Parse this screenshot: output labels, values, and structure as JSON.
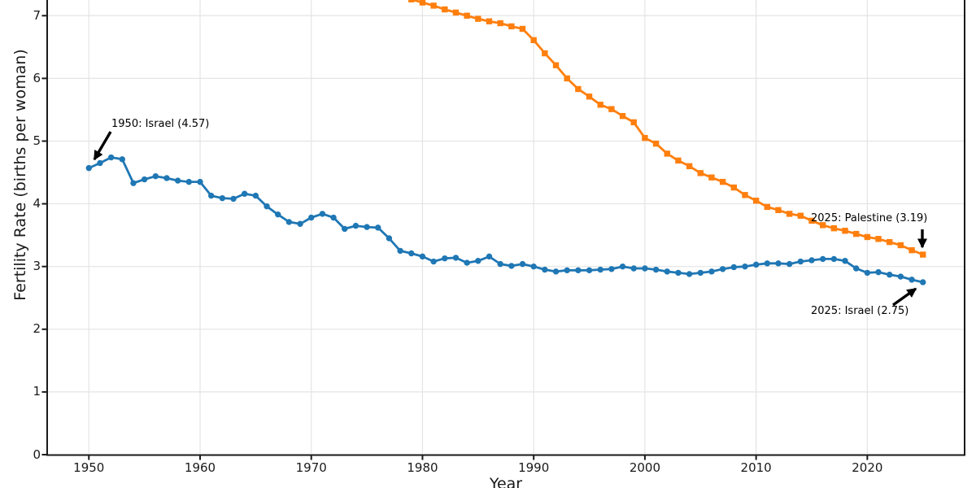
{
  "chart_data": {
    "type": "line",
    "xlabel": "Year",
    "ylabel": "Fertility Rate (births per woman)",
    "xlim": [
      1946.25,
      2028.75
    ],
    "ylim": [
      0,
      7.25
    ],
    "x_ticks": [
      1950,
      1960,
      1970,
      1980,
      1990,
      2000,
      2010,
      2020
    ],
    "y_ticks": [
      0,
      1,
      2,
      3,
      4,
      5,
      6,
      7
    ],
    "grid": true,
    "note": "top of plot (title and Palestine values before 1979) cropped out of view",
    "series": [
      {
        "name": "Israel",
        "color": "#1f77b4",
        "marker": "circle",
        "x_start": 1950,
        "values": [
          4.57,
          4.65,
          4.74,
          4.71,
          4.33,
          4.39,
          4.44,
          4.41,
          4.37,
          4.35,
          4.35,
          4.13,
          4.09,
          4.08,
          4.16,
          4.13,
          3.96,
          3.83,
          3.71,
          3.68,
          3.78,
          3.84,
          3.78,
          3.6,
          3.65,
          3.63,
          3.62,
          3.45,
          3.25,
          3.21,
          3.16,
          3.08,
          3.13,
          3.14,
          3.06,
          3.09,
          3.16,
          3.04,
          3.01,
          3.04,
          3.0,
          2.95,
          2.92,
          2.94,
          2.94,
          2.94,
          2.95,
          2.96,
          3.0,
          2.97,
          2.97,
          2.95,
          2.92,
          2.9,
          2.88,
          2.9,
          2.92,
          2.96,
          2.99,
          3.0,
          3.03,
          3.05,
          3.05,
          3.04,
          3.08,
          3.1,
          3.12,
          3.12,
          3.09,
          2.97,
          2.9,
          2.91,
          2.87,
          2.84,
          2.79,
          2.75
        ]
      },
      {
        "name": "Palestine",
        "color": "#ff7f0e",
        "marker": "square",
        "x_start": 1979,
        "values": [
          7.26,
          7.21,
          7.16,
          7.1,
          7.05,
          7.0,
          6.95,
          6.91,
          6.88,
          6.83,
          6.79,
          6.61,
          6.4,
          6.21,
          6.0,
          5.83,
          5.71,
          5.58,
          5.51,
          5.4,
          5.3,
          5.05,
          4.96,
          4.8,
          4.69,
          4.6,
          4.49,
          4.42,
          4.35,
          4.26,
          4.14,
          4.05,
          3.95,
          3.9,
          3.84,
          3.81,
          3.73,
          3.66,
          3.61,
          3.57,
          3.52,
          3.47,
          3.44,
          3.39,
          3.34,
          3.26,
          3.19
        ]
      }
    ],
    "annotations": [
      {
        "label": "1950: Israel (4.57)",
        "year": 1950,
        "value": 4.57,
        "series": "Israel"
      },
      {
        "label": "2025: Palestine (3.19)",
        "year": 2025,
        "value": 3.19,
        "series": "Palestine"
      },
      {
        "label": "2025: Israel (2.75)",
        "year": 2025,
        "value": 2.75,
        "series": "Israel"
      }
    ]
  }
}
